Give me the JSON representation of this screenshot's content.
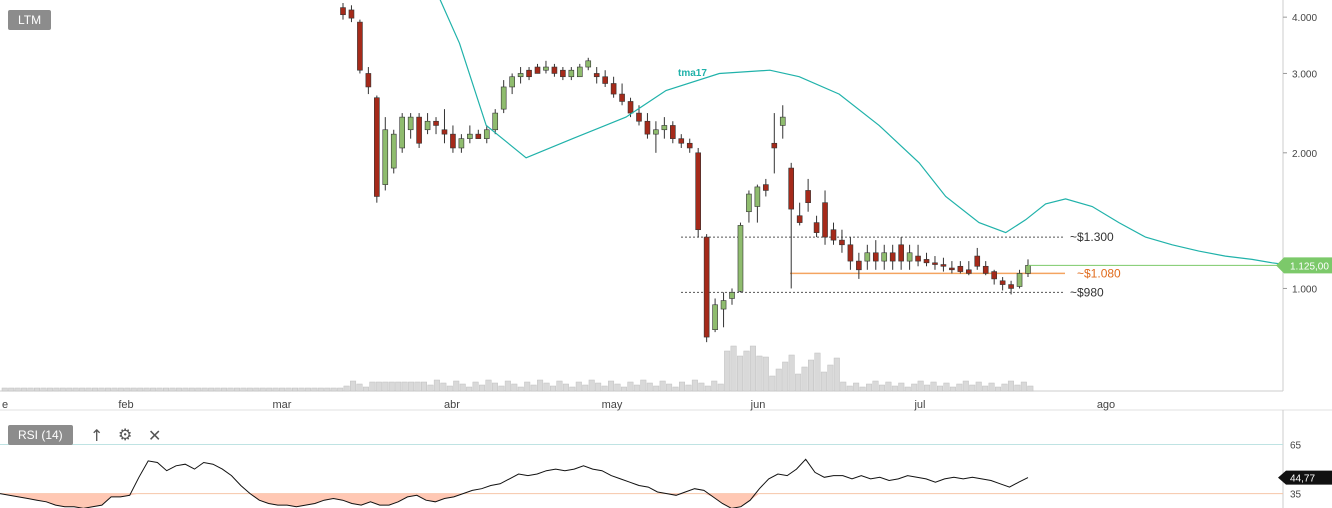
{
  "symbol_tag": "LTM",
  "rsi_tag": "RSI (14)",
  "icons": {
    "up": "arrow-up-icon",
    "settings": "gear-icon",
    "close": "close-icon"
  },
  "colors": {
    "up": "#8fbc6e",
    "down": "#a52a1a",
    "ma": "#20b2aa",
    "support": "#f4a460",
    "price_tag": "#7cc96a",
    "rsi_fill": "#ffc8b4"
  },
  "chart_data": [
    {
      "type": "candlestick",
      "scale": "log",
      "y_ticks": [
        "4.000",
        "3.000",
        "2.000",
        "1.000"
      ],
      "y_tick_values": [
        4000,
        3000,
        2000,
        1000
      ],
      "ylim": [
        620,
        4300
      ],
      "x_ticks": [
        "e",
        "feb",
        "mar",
        "abr",
        "may",
        "jun",
        "jul",
        "ago"
      ],
      "ma_label": "tma17",
      "current_price": "1.125,00",
      "levels": [
        {
          "label": "~$1.300",
          "value": 1300,
          "style": "dotted"
        },
        {
          "label": "~$1.080",
          "value": 1080,
          "style": "solid-orange"
        },
        {
          "label": "~$980",
          "value": 980,
          "style": "dotted"
        }
      ],
      "candles": [
        [
          4200,
          4300,
          3950,
          4050
        ],
        [
          4150,
          4250,
          3900,
          3980
        ],
        [
          3900,
          3950,
          3000,
          3050
        ],
        [
          3000,
          3100,
          2700,
          2800
        ],
        [
          2650,
          2680,
          1550,
          1600
        ],
        [
          1700,
          2400,
          1650,
          2250
        ],
        [
          1850,
          2250,
          1800,
          2200
        ],
        [
          2050,
          2450,
          2000,
          2400
        ],
        [
          2250,
          2450,
          2150,
          2400
        ],
        [
          2400,
          2450,
          2050,
          2100
        ],
        [
          2250,
          2450,
          2200,
          2350
        ],
        [
          2350,
          2400,
          2200,
          2300
        ],
        [
          2250,
          2500,
          2100,
          2200
        ],
        [
          2200,
          2300,
          2000,
          2050
        ],
        [
          2050,
          2200,
          2000,
          2150
        ],
        [
          2150,
          2300,
          2100,
          2200
        ],
        [
          2200,
          2250,
          2150,
          2150
        ],
        [
          2150,
          2300,
          2100,
          2250
        ],
        [
          2250,
          2500,
          2200,
          2450
        ],
        [
          2500,
          2900,
          2450,
          2800
        ],
        [
          2800,
          3000,
          2700,
          2950
        ],
        [
          2950,
          3100,
          2850,
          3000
        ],
        [
          3050,
          3100,
          2900,
          2950
        ],
        [
          3100,
          3150,
          3000,
          3000
        ],
        [
          3050,
          3200,
          3000,
          3100
        ],
        [
          3100,
          3150,
          2950,
          3000
        ],
        [
          3050,
          3100,
          2900,
          2950
        ],
        [
          2950,
          3100,
          2900,
          3050
        ],
        [
          2950,
          3150,
          2950,
          3100
        ],
        [
          3100,
          3250,
          3050,
          3200
        ],
        [
          3000,
          3100,
          2850,
          2950
        ],
        [
          2950,
          3050,
          2800,
          2850
        ],
        [
          2850,
          2950,
          2650,
          2700
        ],
        [
          2700,
          2850,
          2550,
          2600
        ],
        [
          2600,
          2650,
          2400,
          2450
        ],
        [
          2450,
          2550,
          2300,
          2350
        ],
        [
          2350,
          2450,
          2150,
          2200
        ],
        [
          2200,
          2350,
          2000,
          2250
        ],
        [
          2250,
          2400,
          2150,
          2300
        ],
        [
          2300,
          2350,
          2100,
          2150
        ],
        [
          2150,
          2200,
          2050,
          2100
        ],
        [
          2100,
          2150,
          2000,
          2050
        ],
        [
          2000,
          2050,
          1300,
          1350
        ],
        [
          1300,
          1320,
          760,
          780
        ],
        [
          810,
          950,
          800,
          920
        ],
        [
          900,
          980,
          820,
          940
        ],
        [
          950,
          1000,
          920,
          980
        ],
        [
          985,
          1400,
          980,
          1380
        ],
        [
          1480,
          1650,
          1400,
          1620
        ],
        [
          1520,
          1700,
          1400,
          1680
        ],
        [
          1700,
          1750,
          1600,
          1650
        ],
        [
          2100,
          2450,
          1800,
          2050
        ],
        [
          2300,
          2550,
          2150,
          2400
        ],
        [
          1850,
          1900,
          1000,
          1500
        ],
        [
          1450,
          1550,
          1380,
          1400
        ],
        [
          1650,
          1750,
          1480,
          1550
        ],
        [
          1400,
          1450,
          1300,
          1330
        ],
        [
          1550,
          1650,
          1250,
          1300
        ],
        [
          1350,
          1400,
          1250,
          1280
        ],
        [
          1280,
          1350,
          1200,
          1250
        ],
        [
          1250,
          1300,
          1100,
          1150
        ],
        [
          1150,
          1200,
          1050,
          1100
        ],
        [
          1150,
          1250,
          1100,
          1200
        ],
        [
          1200,
          1280,
          1100,
          1150
        ],
        [
          1150,
          1250,
          1100,
          1200
        ],
        [
          1200,
          1250,
          1100,
          1150
        ],
        [
          1250,
          1300,
          1100,
          1150
        ],
        [
          1150,
          1250,
          1100,
          1200
        ],
        [
          1180,
          1250,
          1120,
          1150
        ],
        [
          1160,
          1200,
          1120,
          1140
        ],
        [
          1140,
          1180,
          1100,
          1130
        ],
        [
          1130,
          1170,
          1090,
          1120
        ],
        [
          1110,
          1150,
          1080,
          1100
        ],
        [
          1120,
          1150,
          1080,
          1090
        ],
        [
          1100,
          1150,
          1070,
          1080
        ],
        [
          1180,
          1230,
          1100,
          1120
        ],
        [
          1120,
          1150,
          1070,
          1080
        ],
        [
          1090,
          1100,
          1020,
          1050
        ],
        [
          1040,
          1060,
          990,
          1020
        ],
        [
          1020,
          1040,
          970,
          1000
        ],
        [
          1010,
          1100,
          1000,
          1080
        ],
        [
          1080,
          1160,
          1060,
          1125
        ]
      ],
      "ma": [
        [
          0.325,
          4750
        ],
        [
          0.345,
          3500
        ],
        [
          0.365,
          2300
        ],
        [
          0.395,
          1950
        ],
        [
          0.43,
          2150
        ],
        [
          0.47,
          2400
        ],
        [
          0.5,
          2750
        ],
        [
          0.54,
          3000
        ],
        [
          0.578,
          3050
        ],
        [
          0.6,
          2950
        ],
        [
          0.63,
          2700
        ],
        [
          0.66,
          2300
        ],
        [
          0.69,
          1900
        ],
        [
          0.71,
          1600
        ],
        [
          0.735,
          1400
        ],
        [
          0.755,
          1330
        ],
        [
          0.77,
          1420
        ],
        [
          0.785,
          1540
        ],
        [
          0.8,
          1580
        ],
        [
          0.82,
          1520
        ],
        [
          0.84,
          1400
        ],
        [
          0.86,
          1300
        ],
        [
          0.88,
          1250
        ],
        [
          0.9,
          1210
        ],
        [
          0.92,
          1180
        ],
        [
          0.94,
          1160
        ],
        [
          0.955,
          1140
        ],
        [
          0.97,
          1125
        ]
      ]
    },
    {
      "type": "line",
      "name": "RSI (14)",
      "ylim": [
        25,
        80
      ],
      "y_ticks": [
        "65",
        "35"
      ],
      "y_tick_values": [
        65,
        35
      ],
      "current_value": "44,77",
      "values": [
        35,
        34,
        33,
        32,
        31,
        30,
        28,
        27,
        27,
        26,
        27,
        28,
        33,
        33,
        34,
        45,
        55,
        54,
        49,
        52,
        53,
        50,
        54,
        53,
        50,
        46,
        40,
        35,
        31,
        29,
        28,
        28,
        27,
        28,
        29,
        31,
        32,
        31,
        29,
        28,
        30,
        28,
        28,
        30,
        33,
        34,
        31,
        30,
        32,
        33,
        35,
        37,
        38,
        40,
        41,
        44,
        47,
        46,
        47,
        49,
        50,
        49,
        50,
        52,
        50,
        49,
        46,
        44,
        42,
        40,
        39,
        36,
        35,
        34,
        36,
        38,
        37,
        33,
        29,
        26,
        27,
        31,
        38,
        44,
        47,
        46,
        50,
        56,
        48,
        45,
        46,
        46,
        44,
        46,
        44,
        45,
        43,
        44,
        46,
        45,
        44,
        42,
        44,
        45,
        44,
        45,
        44,
        43,
        41,
        39,
        42,
        44.77
      ]
    }
  ]
}
